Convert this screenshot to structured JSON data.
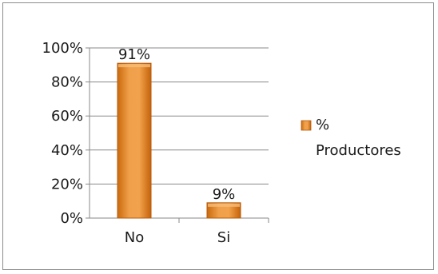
{
  "chart_data": {
    "type": "bar",
    "categories": [
      "No",
      "Si"
    ],
    "series": [
      {
        "name": "% Productores",
        "values": [
          91,
          9
        ],
        "color": "#e88a1a"
      }
    ],
    "data_labels": [
      "91%",
      "9%"
    ],
    "ylim": [
      0,
      100
    ],
    "yticks": [
      "0%",
      "20%",
      "40%",
      "60%",
      "80%",
      "100%"
    ],
    "grid": true,
    "legend": {
      "position": "right",
      "label_line1": "%",
      "label_line2": "Productores"
    }
  }
}
